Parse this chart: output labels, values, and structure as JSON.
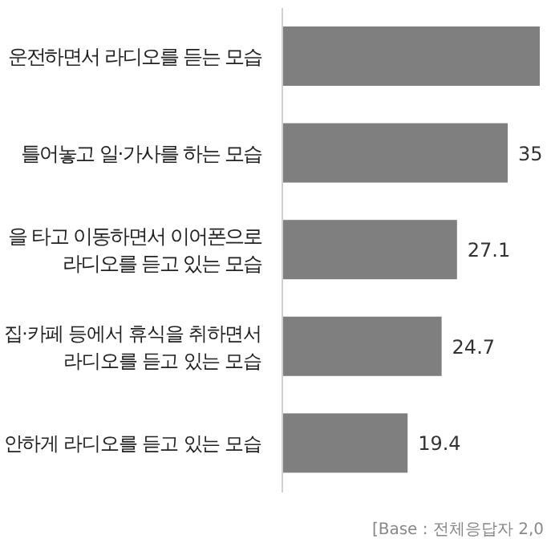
{
  "chart_data": {
    "type": "bar",
    "orientation": "horizontal",
    "categories": [
      "운전하면서 라디오를 듣는 모습",
      "틀어놓고 일·가사를 하는 모습",
      "을 타고 이동하면서 이어폰으로\n라디오를 듣고 있는 모습",
      "집·카페 등에서 휴식을 취하면서\n라디오를 듣고 있는 모습",
      "안하게 라디오를 듣고 있는 모습"
    ],
    "values": [
      40,
      35,
      27.1,
      24.7,
      19.4
    ],
    "value_labels": [
      null,
      "35",
      "27.1",
      "24.7",
      "19.4"
    ],
    "color": "#7f7f7f",
    "annotations": [
      "[Base : 전체응답자 2,0"
    ]
  }
}
